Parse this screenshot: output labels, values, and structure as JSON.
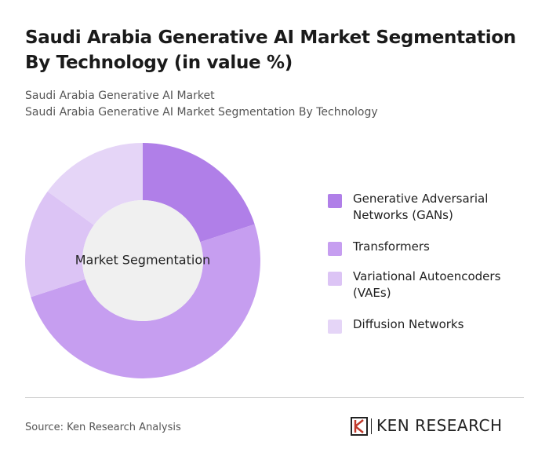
{
  "chart_data": {
    "type": "donut",
    "title": "Saudi Arabia Generative AI Market Segmentation By Technology (in value %)",
    "subtitle": [
      "Saudi Arabia Generative AI Market",
      "Saudi Arabia Generative AI Market Segmentation By Technology"
    ],
    "center_label": "Market Segmentation",
    "categories": [
      "Generative Adversarial Networks (GANs)",
      "Transformers",
      "Variational Autoencoders (VAEs)",
      "Diffusion Networks"
    ],
    "values": [
      20,
      50,
      15,
      15
    ],
    "colors": [
      "#b07fe8",
      "#c69ef0",
      "#dcc4f5",
      "#e5d5f7"
    ],
    "source": "Source: Ken Research Analysis",
    "brand": "KEN RESEARCH"
  }
}
